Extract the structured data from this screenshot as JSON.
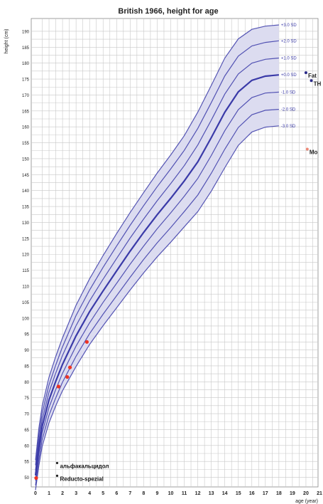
{
  "chart_data": {
    "type": "line",
    "title": "British 1966, height for age",
    "xlabel": "age (year)",
    "ylabel": "height (cm)",
    "xlim": [
      0,
      21
    ],
    "ylim": [
      47,
      194
    ],
    "x_ticks": [
      0,
      1,
      2,
      3,
      4,
      5,
      6,
      7,
      8,
      9,
      10,
      11,
      12,
      13,
      14,
      15,
      16,
      17,
      18,
      19,
      20,
      21
    ],
    "y_ticks": [
      50,
      55,
      60,
      65,
      70,
      75,
      80,
      85,
      90,
      95,
      100,
      105,
      110,
      115,
      120,
      125,
      130,
      135,
      140,
      145,
      150,
      155,
      160,
      165,
      170,
      175,
      180,
      185,
      190
    ],
    "grid": true,
    "band_color": "#dcdcf0",
    "line_color": "#3a3aa8",
    "x": [
      0,
      0.25,
      0.5,
      1,
      1.5,
      2,
      3,
      4,
      5,
      6,
      7,
      8,
      9,
      10,
      11,
      12,
      13,
      14,
      15,
      16,
      17,
      18
    ],
    "series": [
      {
        "name": "+3.0SD",
        "values": [
          55.4,
          65.5,
          72.5,
          81.4,
          88.0,
          93.8,
          104.0,
          112.3,
          119.6,
          126.5,
          133.1,
          139.4,
          145.5,
          151.2,
          157.2,
          164.6,
          173.0,
          181.6,
          187.6,
          190.6,
          191.6,
          192.0
        ]
      },
      {
        "name": "+2.0SD",
        "values": [
          53.8,
          63.5,
          70.3,
          79.0,
          85.3,
          91.0,
          100.8,
          108.8,
          115.9,
          122.6,
          129.1,
          135.3,
          141.2,
          146.8,
          152.6,
          159.5,
          167.6,
          176.0,
          182.2,
          185.4,
          186.5,
          187.0
        ]
      },
      {
        "name": "+1.0SD",
        "values": [
          52.2,
          61.5,
          68.2,
          76.7,
          82.8,
          88.3,
          97.6,
          105.4,
          112.2,
          118.7,
          125.1,
          131.1,
          136.8,
          142.2,
          147.8,
          154.3,
          162.1,
          170.3,
          176.6,
          180.0,
          181.2,
          181.6
        ]
      },
      {
        "name": "+0.0SD",
        "values": [
          50.6,
          59.5,
          66.1,
          74.3,
          80.2,
          85.5,
          94.4,
          102.0,
          108.5,
          114.8,
          121.0,
          126.9,
          132.4,
          137.6,
          143.0,
          149.0,
          156.6,
          164.6,
          171.0,
          174.6,
          175.9,
          176.3
        ]
      },
      {
        "name": "-1.0SD",
        "values": [
          49.0,
          57.6,
          64.0,
          71.9,
          77.6,
          82.7,
          91.2,
          98.5,
          104.9,
          110.9,
          116.9,
          122.6,
          128.0,
          133.0,
          138.2,
          143.8,
          151.0,
          158.8,
          165.4,
          169.2,
          170.6,
          170.9
        ]
      },
      {
        "name": "-2.0SD",
        "values": [
          47.5,
          55.6,
          61.9,
          69.5,
          75.0,
          79.9,
          88.0,
          95.1,
          101.2,
          107.0,
          112.8,
          118.4,
          123.6,
          128.4,
          133.4,
          138.6,
          145.4,
          153.0,
          159.8,
          163.8,
          165.2,
          165.5
        ]
      },
      {
        "name": "-3.0SD",
        "values": [
          46.0,
          53.7,
          59.8,
          67.1,
          72.5,
          77.2,
          84.8,
          91.7,
          97.6,
          103.2,
          108.8,
          114.2,
          119.2,
          123.8,
          128.6,
          133.4,
          139.8,
          147.2,
          154.2,
          158.4,
          159.9,
          160.3
        ]
      }
    ],
    "series_labels": [
      "+3.0 SD",
      "+2.0 SD",
      "+1.0 SD",
      "+0.0 SD",
      "-1.0 SD",
      "-2.0 SD",
      "-3.0 SD"
    ],
    "measurements": [
      {
        "x": 0.05,
        "y": 49.8
      },
      {
        "x": 1.7,
        "y": 78.5
      },
      {
        "x": 2.35,
        "y": 81.5
      },
      {
        "x": 2.55,
        "y": 84.5
      },
      {
        "x": 3.8,
        "y": 92.5
      }
    ],
    "measurement_color": "#ee3322",
    "right_markers": [
      {
        "label": "Fat",
        "x": 20.0,
        "y": 177.0,
        "color": "#2a2a88"
      },
      {
        "label": "TH",
        "x": 20.4,
        "y": 174.5,
        "color": "#2a2a88"
      },
      {
        "label": "Mo",
        "x": 20.1,
        "y": 153.0,
        "color": "#ee8877"
      }
    ],
    "legend": [
      {
        "label": "альфакальцидол",
        "x": 1.6,
        "y": 54.5
      },
      {
        "label": "Reducto-spezial",
        "x": 1.6,
        "y": 50.5
      }
    ],
    "sex_symbol": "♂"
  }
}
